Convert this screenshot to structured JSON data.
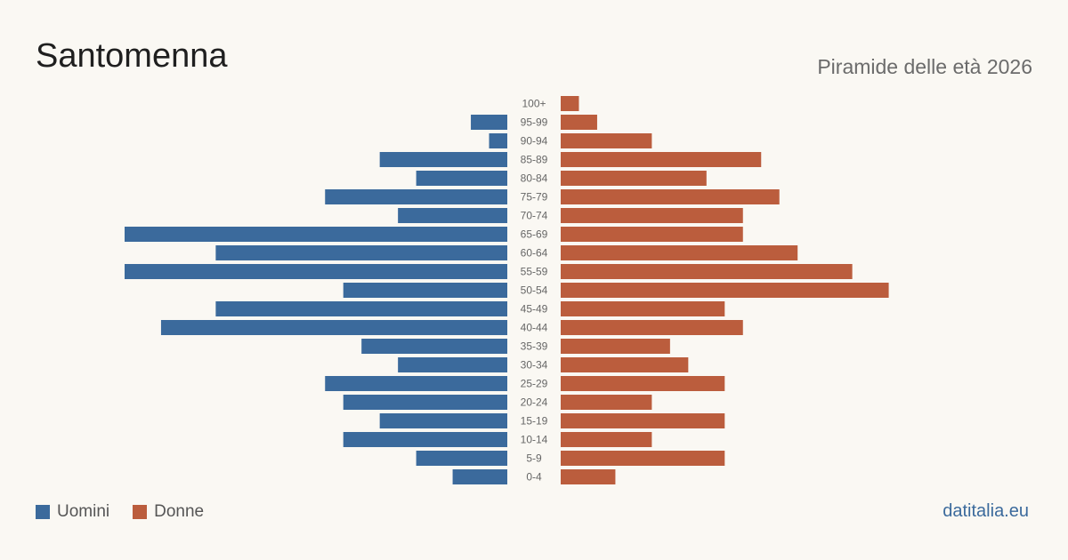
{
  "header": {
    "title": "Santomenna",
    "subtitle": "Piramide delle età 2026"
  },
  "legend": {
    "men_label": "Uomini",
    "women_label": "Donne"
  },
  "footer": {
    "site": "datitalia.eu"
  },
  "colors": {
    "men": "#3b6a9c",
    "women": "#bb5d3d",
    "site": "#3b6a9c"
  },
  "chart_data": {
    "type": "bar",
    "orientation": "horizontal-pyramid",
    "categories": [
      "100+",
      "95-99",
      "90-94",
      "85-89",
      "80-84",
      "75-79",
      "70-74",
      "65-69",
      "60-64",
      "55-59",
      "50-54",
      "45-49",
      "40-44",
      "35-39",
      "30-34",
      "25-29",
      "20-24",
      "15-19",
      "10-14",
      "5-9",
      "0-4"
    ],
    "series": [
      {
        "name": "Uomini",
        "values": [
          0,
          2,
          1,
          7,
          5,
          10,
          6,
          21,
          16,
          21,
          9,
          16,
          19,
          8,
          6,
          10,
          9,
          7,
          9,
          5,
          3
        ]
      },
      {
        "name": "Donne",
        "values": [
          1,
          2,
          5,
          11,
          8,
          12,
          10,
          10,
          13,
          16,
          18,
          9,
          10,
          6,
          7,
          9,
          5,
          9,
          5,
          9,
          3
        ]
      }
    ],
    "xlim": [
      0,
      21
    ],
    "grid": false,
    "legend_position": "bottom-left"
  }
}
